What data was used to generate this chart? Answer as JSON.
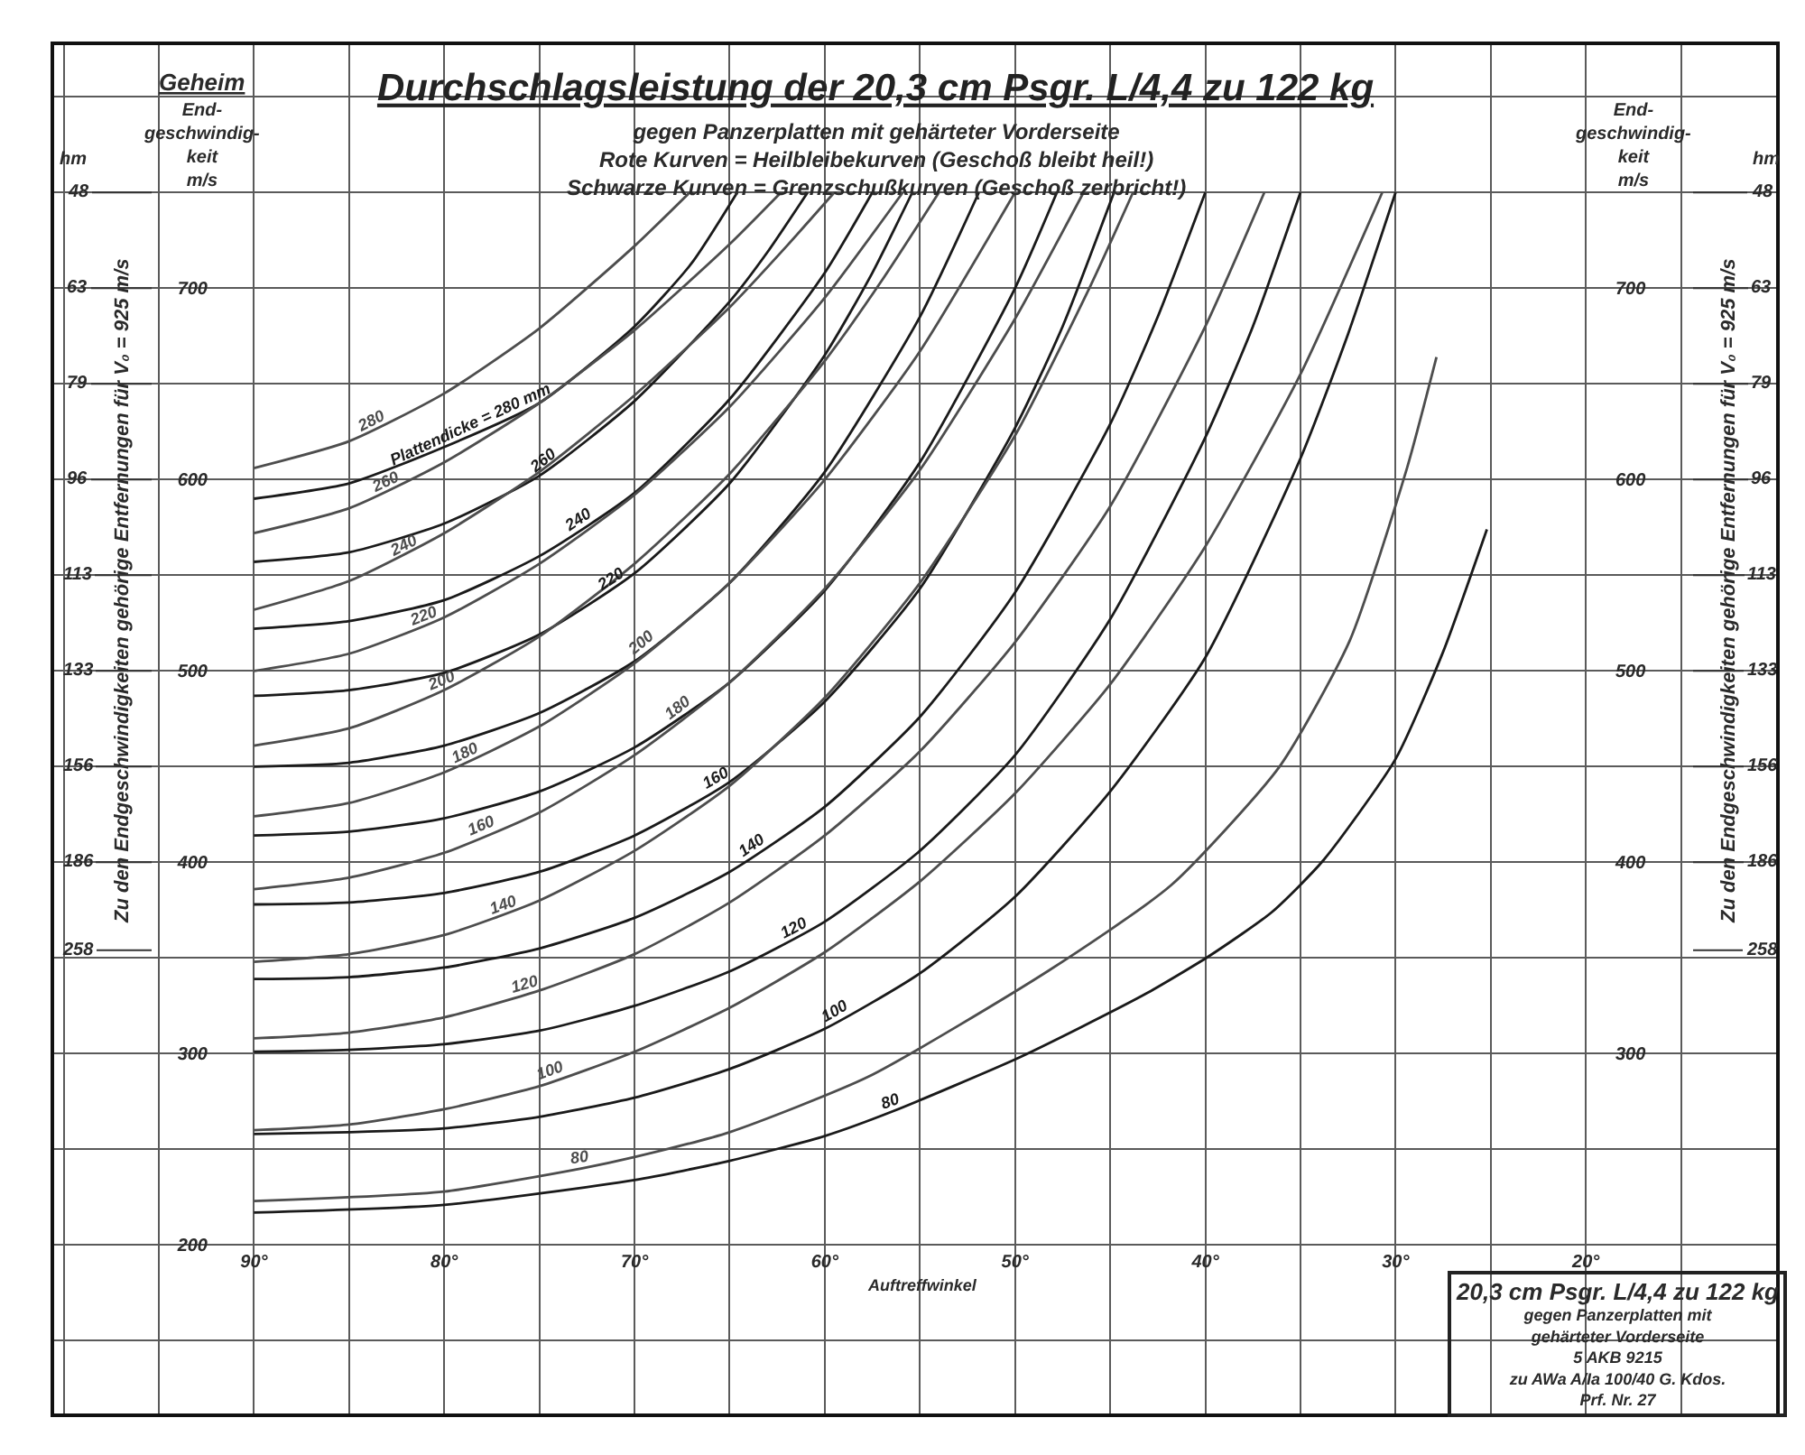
{
  "chart_data": {
    "type": "line",
    "title": "Durchschlagsleistung der 20,3 cm Psgr. L/4,4 zu 122 kg",
    "subtitle": "gegen Panzerplatten mit gehärteter Vorderseite\nRote Kurven = Heilbleibekurven (Geschoß bleibt heil!)\nSchwarze Kurven = Grenzschußkurven (Geschoß zerbricht!)",
    "xlabel": "Auftreffwinkel",
    "ylabel": "End-\ngeschwindig-\nkeit\nm/s",
    "y2label": "End-\ngeschwindig-\nkeit\nm/s",
    "annotations": [
      "Geheim",
      "hm",
      "hm",
      "Zu den Endgeschwindigkeiten gehörige Entfernungen für V₀ = 925 m/s",
      "Zu den Endgeschwindigkeiten gehörige Entfernungen für V₀ = 925 m/s",
      "20,3 cm Psgr. L/4,4 zu 122 kg\ngegen Panzerplatten mit\ngehärteter Vorderseite\n5 AKB 9215\nzu AWa A/Ia 100/40 G. Kdos.\nPrf. Nr. 27",
      "48",
      "63",
      "79",
      "96",
      "113",
      "133",
      "156",
      "186",
      "258",
      "48",
      "63",
      "79",
      "96",
      "113",
      "133",
      "156",
      "186",
      "258",
      {
        "text": "280",
        "x": 83.6,
        "y": 626
      },
      {
        "text": "Plattendicke = 280 mm",
        "x": 78.4,
        "y": 624
      },
      {
        "text": "260",
        "x": 82.9,
        "y": 594
      },
      {
        "text": "260",
        "x": 74.5,
        "y": 606
      },
      {
        "text": "240",
        "x": 81.9,
        "y": 561
      },
      {
        "text": "240",
        "x": 72.7,
        "y": 574
      },
      {
        "text": "220",
        "x": 80.9,
        "y": 524
      },
      {
        "text": "220",
        "x": 71.0,
        "y": 543
      },
      {
        "text": "200",
        "x": 80.0,
        "y": 490
      },
      {
        "text": "200",
        "x": 69.3,
        "y": 510
      },
      {
        "text": "180",
        "x": 78.7,
        "y": 452
      },
      {
        "text": "180",
        "x": 67.4,
        "y": 476
      },
      {
        "text": "160",
        "x": 77.8,
        "y": 414
      },
      {
        "text": "160",
        "x": 65.5,
        "y": 439
      },
      {
        "text": "140",
        "x": 76.7,
        "y": 373
      },
      {
        "text": "140",
        "x": 63.5,
        "y": 404
      },
      {
        "text": "120",
        "x": 75.6,
        "y": 331
      },
      {
        "text": "120",
        "x": 61.4,
        "y": 361
      },
      {
        "text": "100",
        "x": 74.3,
        "y": 286
      },
      {
        "text": "100",
        "x": 59.2,
        "y": 317
      },
      {
        "text": "80",
        "x": 72.8,
        "y": 240
      },
      {
        "text": "80",
        "x": 56.4,
        "y": 270
      }
    ],
    "xlim": [
      100.5,
      10
    ],
    "xticks": [
      {
        "value": 100,
        "label": null
      },
      {
        "value": 95,
        "label": null
      },
      {
        "value": 90,
        "label": "90°"
      },
      {
        "value": 85,
        "label": null
      },
      {
        "value": 80,
        "label": "80°"
      },
      {
        "value": 75,
        "label": null
      },
      {
        "value": 70,
        "label": "70°"
      },
      {
        "value": 65,
        "label": null
      },
      {
        "value": 60,
        "label": "60°"
      },
      {
        "value": 55,
        "label": null
      },
      {
        "value": 50,
        "label": "50°"
      },
      {
        "value": 45,
        "label": null
      },
      {
        "value": 40,
        "label": "40°"
      },
      {
        "value": 35,
        "label": null
      },
      {
        "value": 30,
        "label": "30°"
      },
      {
        "value": 25,
        "label": null
      },
      {
        "value": 20,
        "label": "20°"
      },
      {
        "value": 15,
        "label": null
      }
    ],
    "ylim": [
      112,
      827
    ],
    "yticks": [
      {
        "value": 150,
        "label": null
      },
      200,
      {
        "value": 250,
        "label": null
      },
      300,
      {
        "value": 350,
        "label": null
      },
      400,
      {
        "value": 450,
        "label": null
      },
      500,
      {
        "value": 550,
        "label": null
      },
      600,
      {
        "value": 650,
        "label": null
      },
      700,
      {
        "value": 750,
        "label": null
      },
      {
        "value": 800,
        "label": null
      }
    ],
    "y2lim": [
      112,
      827
    ],
    "y2ticks": [
      300,
      400,
      500,
      600,
      700
    ],
    "grid": true,
    "series": [
      {
        "color": "#4d4d4d",
        "x": [
          90,
          85,
          80,
          75,
          70,
          67.1
        ],
        "values": [
          606,
          620,
          645,
          679,
          722,
          750
        ]
      },
      {
        "color": "#1a1a1a",
        "x": [
          90,
          85,
          80,
          75,
          70,
          67,
          64.6
        ],
        "values": [
          590,
          598,
          617,
          640,
          680,
          713,
          750
        ]
      },
      {
        "color": "#4d4d4d",
        "x": [
          90,
          85,
          80,
          75,
          70,
          65,
          62.3
        ],
        "values": [
          572,
          585,
          609,
          640,
          678,
          723,
          750
        ]
      },
      {
        "color": "#1a1a1a",
        "x": [
          90,
          85,
          80,
          75,
          70,
          65,
          63,
          60.9
        ],
        "values": [
          557,
          562,
          577,
          602,
          641,
          693,
          719,
          750
        ]
      },
      {
        "color": "#4d4d4d",
        "x": [
          90,
          85,
          80,
          75,
          70,
          65,
          62,
          59.5
        ],
        "values": [
          532,
          547,
          572,
          604,
          644,
          690,
          722,
          750
        ]
      },
      {
        "color": "#1a1a1a",
        "x": [
          90,
          85,
          80,
          75,
          70,
          65,
          60,
          57.5
        ],
        "values": [
          522,
          526,
          537,
          560,
          593,
          642,
          708,
          750
        ]
      },
      {
        "color": "#4d4d4d",
        "x": [
          90,
          85,
          80,
          75,
          70,
          65,
          60,
          55.9
        ],
        "values": [
          500,
          509,
          528,
          556,
          592,
          638,
          695,
          750
        ]
      },
      {
        "color": "#1a1a1a",
        "x": [
          90,
          85,
          80,
          75,
          70,
          65,
          60,
          57.5,
          55.4
        ],
        "values": [
          487,
          490,
          499,
          519,
          551,
          598,
          665,
          708,
          750
        ]
      },
      {
        "color": "#4d4d4d",
        "x": [
          90,
          85,
          80,
          75,
          70,
          65,
          60,
          57,
          54
        ],
        "values": [
          461,
          470,
          490,
          518,
          556,
          603,
          662,
          704,
          750
        ]
      },
      {
        "color": "#1a1a1a",
        "x": [
          90,
          85,
          80,
          75,
          70,
          65,
          60,
          55,
          51.9
        ],
        "values": [
          450,
          452,
          461,
          478,
          505,
          546,
          604,
          685,
          750
        ]
      },
      {
        "color": "#4d4d4d",
        "x": [
          90,
          85,
          80,
          75,
          70,
          65,
          60,
          55,
          50
        ],
        "values": [
          424,
          431,
          447,
          471,
          504,
          546,
          600,
          667,
          750
        ]
      },
      {
        "color": "#1a1a1a",
        "x": [
          90,
          85,
          80,
          75,
          70,
          65,
          60,
          55,
          50,
          47.8
        ],
        "values": [
          414,
          416,
          423,
          437,
          460,
          494,
          542,
          609,
          700,
          750
        ]
      },
      {
        "color": "#4d4d4d",
        "x": [
          90,
          85,
          80,
          75,
          70,
          65,
          60,
          55,
          50,
          46.4
        ],
        "values": [
          386,
          392,
          405,
          426,
          456,
          494,
          543,
          605,
          684,
          750
        ]
      },
      {
        "color": "#1a1a1a",
        "x": [
          90,
          85,
          80,
          75,
          70,
          65,
          60,
          55,
          50,
          47.5,
          44.8
        ],
        "values": [
          378,
          379,
          384,
          395,
          414,
          442,
          484,
          543,
          627,
          680,
          750
        ]
      },
      {
        "color": "#4d4d4d",
        "x": [
          90,
          85,
          80,
          75,
          70,
          65,
          60,
          55,
          50,
          46,
          43.8
        ],
        "values": [
          348,
          352,
          362,
          380,
          406,
          440,
          486,
          546,
          623,
          702,
          750
        ]
      },
      {
        "color": "#1a1a1a",
        "x": [
          90,
          85,
          80,
          75,
          70,
          65,
          60,
          55,
          50,
          45,
          42.5,
          40
        ],
        "values": [
          339,
          340,
          345,
          355,
          371,
          395,
          429,
          476,
          541,
          629,
          685,
          750
        ]
      },
      {
        "color": "#4d4d4d",
        "x": [
          90,
          85,
          80,
          75,
          70,
          65,
          60,
          55,
          50,
          45,
          40,
          36.9
        ],
        "values": [
          308,
          311,
          319,
          333,
          352,
          379,
          414,
          458,
          515,
          586,
          680,
          750
        ]
      },
      {
        "color": "#1a1a1a",
        "x": [
          90,
          85,
          80,
          75,
          70,
          65,
          60,
          55,
          50,
          45,
          40,
          37.5,
          35
        ],
        "values": [
          301,
          302,
          305,
          312,
          325,
          343,
          369,
          406,
          456,
          527,
          622,
          680,
          750
        ]
      },
      {
        "color": "#4d4d4d",
        "x": [
          90,
          85,
          80,
          75,
          70,
          65,
          60,
          55,
          50,
          45,
          40,
          35,
          30.7
        ],
        "values": [
          260,
          263,
          271,
          283,
          301,
          324,
          353,
          390,
          436,
          493,
          565,
          655,
          750
        ]
      },
      {
        "color": "#1a1a1a",
        "x": [
          90,
          85,
          80,
          75,
          70,
          65,
          60,
          55,
          50,
          45,
          40,
          35,
          32.5,
          30
        ],
        "values": [
          258,
          259,
          261,
          267,
          277,
          292,
          313,
          342,
          382,
          437,
          507,
          611,
          676,
          750
        ]
      },
      {
        "color": "#4d4d4d",
        "x": [
          90,
          80,
          72.8,
          70,
          65,
          57.7,
          48.3,
          41.8,
          36.1,
          32.4,
          29.4,
          27.85
        ],
        "values": [
          223,
          228,
          240,
          246,
          259,
          288,
          343,
          388,
          450,
          516,
          606,
          664
        ]
      },
      {
        "color": "#1a1a1a",
        "x": [
          90,
          80,
          70,
          65,
          60,
          56.4,
          50,
          46.5,
          43,
          39.8,
          36.5,
          33.8,
          30,
          27.5,
          25.2
        ],
        "values": [
          217,
          221,
          234,
          244,
          257,
          270,
          297,
          314,
          332,
          351,
          374,
          401,
          454,
          510,
          574
        ]
      }
    ]
  }
}
